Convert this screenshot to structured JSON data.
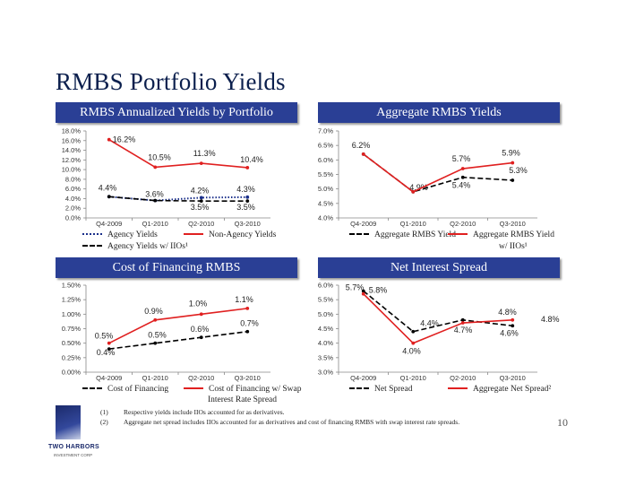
{
  "page": {
    "title": "RMBS Portfolio Yields",
    "page_number": "10",
    "logo_text": "TWO HARBORS",
    "logo_sub": "INVESTMENT CORP"
  },
  "footnotes": [
    {
      "num": "(1)",
      "text": "Respective yields include IIOs accounted for as derivatives."
    },
    {
      "num": "(2)",
      "text": "Aggregate net spread includes IIOs accounted for as derivatives and cost of financing RMBS with swap interest rate spreads."
    }
  ],
  "colors": {
    "header_bg": "#2a3f95",
    "red": "#e02020",
    "blue": "#1a2f8a",
    "black": "#000000"
  },
  "chart_data": [
    {
      "type": "line",
      "title": "RMBS Annualized Yields by Portfolio",
      "categories": [
        "Q4-2009",
        "Q1-2010",
        "Q2-2010",
        "Q3-2010"
      ],
      "ylim": [
        0,
        18
      ],
      "yticks": [
        "0.0%",
        "2.0%",
        "4.0%",
        "6.0%",
        "8.0%",
        "10.0%",
        "12.0%",
        "14.0%",
        "16.0%",
        "18.0%"
      ],
      "ytick_values": [
        0,
        2,
        4,
        6,
        8,
        10,
        12,
        14,
        16,
        18
      ],
      "series": [
        {
          "name": "Agency Yields",
          "values": [
            4.4,
            3.6,
            4.2,
            4.3
          ],
          "labels": [
            "4.4%",
            "3.6%",
            "4.2%",
            "4.3%"
          ],
          "style": "dotted",
          "color": "#1a2f8a"
        },
        {
          "name": "Non-Agency Yields",
          "values": [
            16.2,
            10.5,
            11.3,
            10.4
          ],
          "labels": [
            "16.2%",
            "10.5%",
            "11.3%",
            "10.4%"
          ],
          "style": "solid",
          "color": "#e02020"
        },
        {
          "name": "Agency Yields w/ IIOs",
          "values": [
            4.4,
            3.6,
            3.5,
            3.5
          ],
          "labels": [
            "",
            "",
            "3.5%",
            "3.5%"
          ],
          "style": "dashed",
          "color": "#000000"
        }
      ],
      "legend": [
        {
          "label": "Agency Yields",
          "style": "dotted"
        },
        {
          "label": "Non-Agency Yields",
          "style": "solid"
        },
        {
          "label": "Agency Yields w/ IIOs¹",
          "style": "dashed"
        }
      ]
    },
    {
      "type": "line",
      "title": "Aggregate RMBS Yields",
      "categories": [
        "Q4-2009",
        "Q1-2010",
        "Q2-2010",
        "Q3-2010"
      ],
      "ylim": [
        4,
        7
      ],
      "yticks": [
        "4.0%",
        "4.5%",
        "5.0%",
        "5.5%",
        "6.0%",
        "6.5%",
        "7.0%"
      ],
      "ytick_values": [
        4,
        4.5,
        5,
        5.5,
        6,
        6.5,
        7
      ],
      "series": [
        {
          "name": "Aggregate RMBS Yield",
          "values": [
            6.2,
            4.9,
            5.4,
            5.3
          ],
          "labels": [
            "",
            "4.9%",
            "5.4%",
            "5.3%"
          ],
          "style": "dashed",
          "color": "#000000"
        },
        {
          "name": "Aggregate RMBS Yield w/ IIOs",
          "values": [
            6.2,
            4.9,
            5.7,
            5.9
          ],
          "labels": [
            "6.2%",
            "",
            "5.7%",
            "5.9%"
          ],
          "style": "solid",
          "color": "#e02020"
        }
      ],
      "legend": [
        {
          "label": "Aggregate RMBS Yield",
          "style": "dashed"
        },
        {
          "label": "Aggregate RMBS Yield",
          "style": "solid"
        },
        {
          "label": "w/ IIOs¹",
          "style": "none"
        }
      ]
    },
    {
      "type": "line",
      "title": "Cost of Financing RMBS",
      "categories": [
        "Q4-2009",
        "Q1-2010",
        "Q2-2010",
        "Q3-2010"
      ],
      "ylim": [
        0,
        1.5
      ],
      "yticks": [
        "0.00%",
        "0.25%",
        "0.50%",
        "0.75%",
        "1.00%",
        "1.25%",
        "1.50%"
      ],
      "ytick_values": [
        0,
        0.25,
        0.5,
        0.75,
        1,
        1.25,
        1.5
      ],
      "series": [
        {
          "name": "Cost of Financing",
          "values": [
            0.4,
            0.5,
            0.6,
            0.7
          ],
          "labels": [
            "0.4%",
            "0.5%",
            "0.6%",
            "0.7%"
          ],
          "style": "dashed",
          "color": "#000000"
        },
        {
          "name": "Cost of Financing w/ Swap Interest Rate Spread",
          "values": [
            0.5,
            0.9,
            1.0,
            1.1
          ],
          "labels": [
            "0.5%",
            "0.9%",
            "1.0%",
            "1.1%"
          ],
          "style": "solid",
          "color": "#e02020"
        }
      ],
      "legend": [
        {
          "label": "Cost of Financing",
          "style": "dashed"
        },
        {
          "label": "Cost of Financing w/ Swap",
          "style": "solid"
        },
        {
          "label": "Interest Rate Spread",
          "style": "none"
        }
      ]
    },
    {
      "type": "line",
      "title": "Net Interest Spread",
      "categories": [
        "Q4-2009",
        "Q1-2010",
        "Q2-2010",
        "Q3-2010"
      ],
      "ylim": [
        3,
        6
      ],
      "yticks": [
        "3.0%",
        "3.5%",
        "4.0%",
        "4.5%",
        "5.0%",
        "5.5%",
        "6.0%"
      ],
      "ytick_values": [
        3,
        3.5,
        4,
        4.5,
        5,
        5.5,
        6
      ],
      "series": [
        {
          "name": "Net Spread",
          "values": [
            5.8,
            4.4,
            4.8,
            4.6
          ],
          "labels": [
            "5.8%",
            "4.4%",
            "",
            "4.6%"
          ],
          "style": "dashed",
          "color": "#000000"
        },
        {
          "name": "Aggregate Net Spread",
          "values": [
            5.7,
            4.0,
            4.7,
            4.8
          ],
          "labels": [
            "5.7%",
            "4.0%",
            "4.7%",
            "4.8%"
          ],
          "style": "solid",
          "color": "#e02020"
        }
      ],
      "extra_labels": [
        "4.8%"
      ],
      "legend": [
        {
          "label": "Net Spread",
          "style": "dashed"
        },
        {
          "label": "Aggregate Net Spread²",
          "style": "solid"
        }
      ]
    }
  ]
}
